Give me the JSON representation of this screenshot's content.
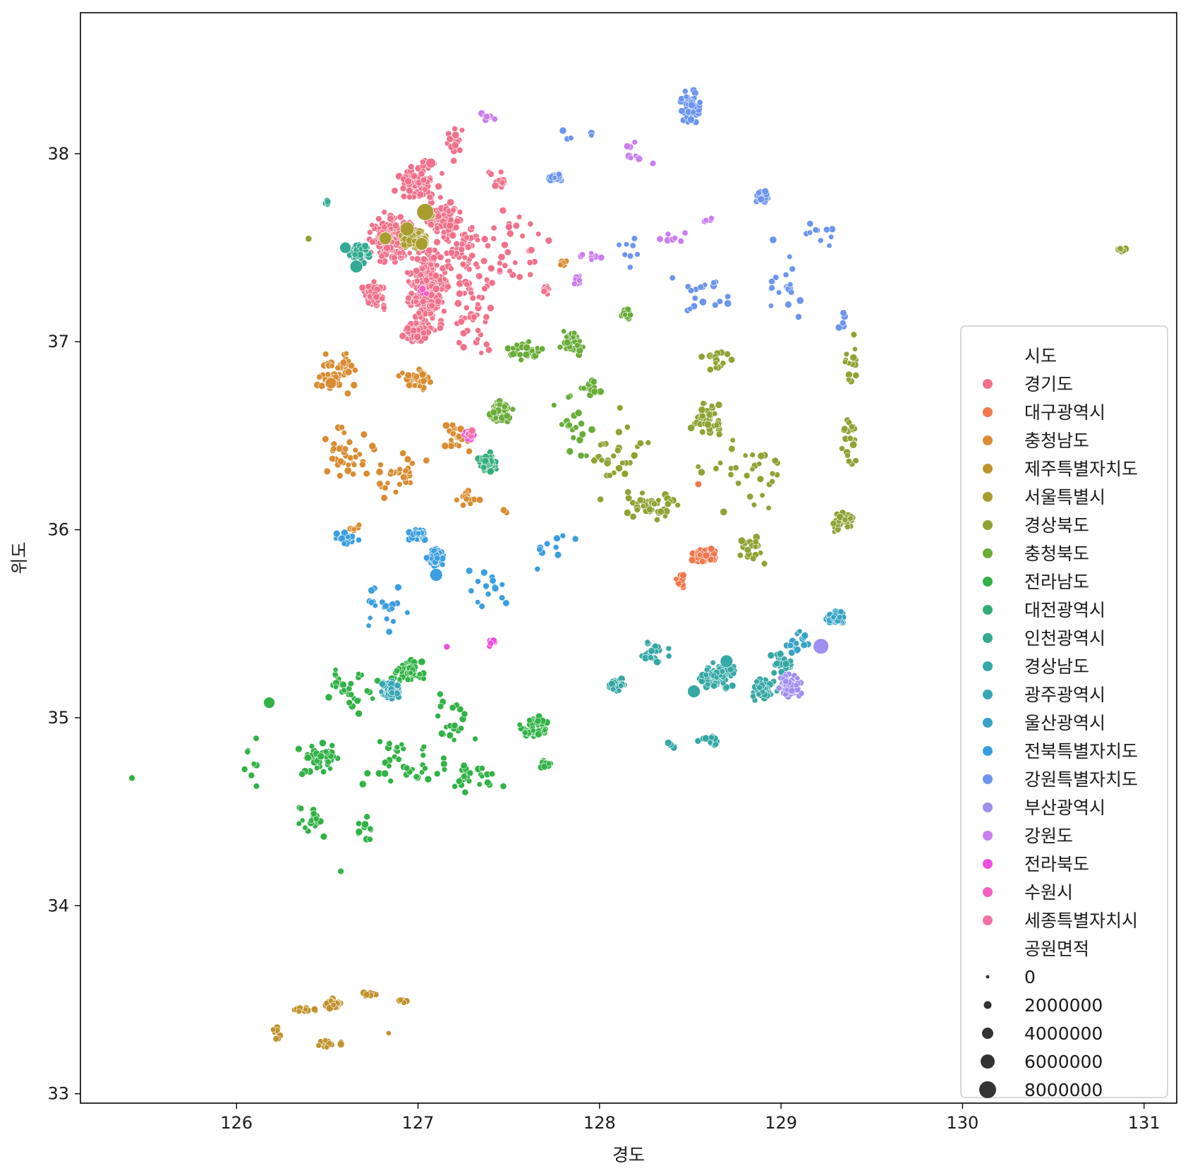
{
  "chart_data": {
    "type": "scatter",
    "xlabel": "경도",
    "ylabel": "위도",
    "xlim": [
      125.14,
      131.18
    ],
    "ylim": [
      32.95,
      38.75
    ],
    "xticks": [
      "126",
      "127",
      "128",
      "129",
      "130",
      "131"
    ],
    "yticks": [
      "33",
      "34",
      "35",
      "36",
      "37",
      "38"
    ],
    "grid": false,
    "legend_position": "right",
    "hue_title": "시도",
    "size_title": "공원면적",
    "size_levels": [
      "0",
      "2000000",
      "4000000",
      "6000000",
      "8000000"
    ],
    "series": [
      {
        "name": "경기도",
        "color": "#f0728a"
      },
      {
        "name": "대구광역시",
        "color": "#f0774e"
      },
      {
        "name": "충청남도",
        "color": "#d98c31"
      },
      {
        "name": "제주특별자치도",
        "color": "#c0922c"
      },
      {
        "name": "서울특별시",
        "color": "#a99d2f"
      },
      {
        "name": "경상북도",
        "color": "#8ea333"
      },
      {
        "name": "충청북도",
        "color": "#69ac38"
      },
      {
        "name": "전라남도",
        "color": "#32b246"
      },
      {
        "name": "대전광역시",
        "color": "#35ad7b"
      },
      {
        "name": "인천광역시",
        "color": "#33aa93"
      },
      {
        "name": "경상남도",
        "color": "#35a8a5"
      },
      {
        "name": "광주광역시",
        "color": "#37a6b5"
      },
      {
        "name": "울산광역시",
        "color": "#38a3c6"
      },
      {
        "name": "전북특별자치도",
        "color": "#3b9ee0"
      },
      {
        "name": "강원특별자치도",
        "color": "#6c95ee"
      },
      {
        "name": "부산광역시",
        "color": "#a08ef0"
      },
      {
        "name": "강원도",
        "color": "#ca7df0"
      },
      {
        "name": "전라북도",
        "color": "#ee4fe0"
      },
      {
        "name": "수원시",
        "color": "#f45fc0"
      },
      {
        "name": "세종특별자치시",
        "color": "#f470a6"
      }
    ],
    "clusters": [
      {
        "series": 0,
        "points": [
          [
            126.85,
            37.55,
            0.18,
            0.18,
            140
          ],
          [
            127.05,
            37.3,
            0.13,
            0.28,
            260
          ],
          [
            127.15,
            37.65,
            0.14,
            0.12,
            90
          ],
          [
            127.0,
            37.85,
            0.18,
            0.15,
            70
          ],
          [
            127.0,
            37.05,
            0.11,
            0.07,
            110
          ],
          [
            126.75,
            37.25,
            0.1,
            0.12,
            60
          ],
          [
            127.25,
            37.45,
            0.22,
            0.35,
            70
          ],
          [
            127.3,
            37.15,
            0.2,
            0.25,
            40
          ],
          [
            127.55,
            37.5,
            0.25,
            0.3,
            30
          ],
          [
            127.7,
            37.28,
            0.05,
            0.05,
            12
          ],
          [
            127.2,
            38.05,
            0.1,
            0.15,
            18
          ],
          [
            127.45,
            37.85,
            0.1,
            0.1,
            12
          ]
        ],
        "bigs": [
          [
            127.07,
            37.95,
            4
          ]
        ]
      },
      {
        "series": 1,
        "points": [
          [
            128.58,
            35.86,
            0.1,
            0.05,
            90
          ],
          [
            128.45,
            35.72,
            0.04,
            0.08,
            14
          ],
          [
            128.55,
            36.24,
            0.01,
            0.01,
            1
          ]
        ],
        "bigs": []
      },
      {
        "series": 2,
        "points": [
          [
            126.55,
            36.85,
            0.2,
            0.18,
            50
          ],
          [
            127.0,
            36.8,
            0.15,
            0.08,
            30
          ],
          [
            126.6,
            36.4,
            0.2,
            0.2,
            35
          ],
          [
            126.9,
            36.3,
            0.2,
            0.18,
            30
          ],
          [
            127.2,
            36.5,
            0.1,
            0.15,
            20
          ],
          [
            126.65,
            36.0,
            0.06,
            0.07,
            10
          ],
          [
            127.3,
            36.15,
            0.15,
            0.1,
            14
          ],
          [
            127.48,
            36.1,
            0.03,
            0.03,
            3
          ],
          [
            127.8,
            37.42,
            0.04,
            0.02,
            6
          ]
        ],
        "bigs": [
          [
            126.52,
            36.78,
            5
          ]
        ]
      },
      {
        "series": 3,
        "points": [
          [
            126.53,
            33.48,
            0.07,
            0.04,
            30
          ],
          [
            126.38,
            33.45,
            0.12,
            0.02,
            12
          ],
          [
            126.72,
            33.53,
            0.1,
            0.02,
            10
          ],
          [
            126.92,
            33.5,
            0.05,
            0.03,
            5
          ],
          [
            126.22,
            33.32,
            0.05,
            0.06,
            8
          ],
          [
            126.52,
            33.26,
            0.12,
            0.03,
            16
          ],
          [
            126.84,
            33.32,
            0.01,
            0.01,
            1
          ]
        ],
        "bigs": []
      },
      {
        "series": 4,
        "points": [
          [
            126.98,
            37.54,
            0.09,
            0.06,
            240
          ],
          [
            127.05,
            37.68,
            0.04,
            0.03,
            30
          ]
        ],
        "bigs": [
          [
            127.04,
            37.69,
            9
          ],
          [
            126.94,
            37.6,
            7
          ],
          [
            126.82,
            37.55,
            6
          ],
          [
            127.02,
            37.52,
            6
          ]
        ]
      },
      {
        "series": 5,
        "points": [
          [
            128.6,
            36.6,
            0.12,
            0.15,
            40
          ],
          [
            128.3,
            36.12,
            0.2,
            0.1,
            40
          ],
          [
            129.35,
            36.05,
            0.1,
            0.1,
            30
          ],
          [
            128.85,
            35.88,
            0.15,
            0.12,
            20
          ],
          [
            129.38,
            36.5,
            0.1,
            0.25,
            20
          ],
          [
            128.1,
            36.4,
            0.3,
            0.3,
            30
          ],
          [
            128.8,
            36.3,
            0.4,
            0.3,
            30
          ],
          [
            129.4,
            36.9,
            0.1,
            0.25,
            15
          ],
          [
            128.65,
            36.9,
            0.2,
            0.1,
            15
          ],
          [
            130.87,
            37.49,
            0.05,
            0.02,
            8
          ],
          [
            126.4,
            37.55,
            0.01,
            0.01,
            1
          ]
        ],
        "bigs": []
      },
      {
        "series": 6,
        "points": [
          [
            127.45,
            36.63,
            0.08,
            0.08,
            80
          ],
          [
            127.85,
            37.0,
            0.12,
            0.1,
            30
          ],
          [
            127.6,
            36.95,
            0.15,
            0.08,
            25
          ],
          [
            128.15,
            37.15,
            0.05,
            0.04,
            15
          ],
          [
            127.85,
            36.6,
            0.15,
            0.3,
            20
          ],
          [
            127.95,
            36.75,
            0.08,
            0.08,
            15
          ]
        ],
        "bigs": []
      },
      {
        "series": 7,
        "points": [
          [
            126.95,
            35.25,
            0.12,
            0.1,
            60
          ],
          [
            127.65,
            34.95,
            0.12,
            0.08,
            50
          ],
          [
            127.7,
            34.75,
            0.05,
            0.03,
            20
          ],
          [
            126.45,
            34.8,
            0.15,
            0.15,
            40
          ],
          [
            126.6,
            35.15,
            0.2,
            0.2,
            30
          ],
          [
            126.9,
            34.75,
            0.3,
            0.2,
            35
          ],
          [
            127.3,
            34.7,
            0.2,
            0.15,
            25
          ],
          [
            126.4,
            34.45,
            0.15,
            0.15,
            20
          ],
          [
            126.1,
            34.7,
            0.1,
            0.25,
            10
          ],
          [
            126.7,
            34.4,
            0.1,
            0.1,
            10
          ],
          [
            127.2,
            35.0,
            0.15,
            0.2,
            20
          ],
          [
            125.42,
            34.68,
            0.01,
            0.01,
            1
          ],
          [
            126.58,
            34.18,
            0.01,
            0.01,
            1
          ]
        ],
        "bigs": [
          [
            126.18,
            35.08,
            5
          ]
        ]
      },
      {
        "series": 8,
        "points": [
          [
            127.38,
            36.36,
            0.07,
            0.07,
            80
          ]
        ],
        "bigs": []
      },
      {
        "series": 9,
        "points": [
          [
            126.68,
            37.48,
            0.07,
            0.08,
            60
          ],
          [
            126.5,
            37.74,
            0.02,
            0.02,
            6
          ]
        ],
        "bigs": [
          [
            126.66,
            37.4,
            6
          ],
          [
            126.6,
            37.5,
            5
          ]
        ]
      },
      {
        "series": 10,
        "points": [
          [
            128.65,
            35.22,
            0.15,
            0.1,
            80
          ],
          [
            128.1,
            35.18,
            0.08,
            0.06,
            30
          ],
          [
            128.6,
            34.88,
            0.1,
            0.04,
            15
          ],
          [
            128.4,
            34.85,
            0.04,
            0.03,
            8
          ],
          [
            128.9,
            35.15,
            0.1,
            0.08,
            40
          ],
          [
            128.3,
            35.35,
            0.1,
            0.1,
            20
          ],
          [
            129.0,
            35.3,
            0.1,
            0.1,
            20
          ]
        ],
        "bigs": [
          [
            128.52,
            35.14,
            6
          ],
          [
            128.7,
            35.3,
            6
          ]
        ]
      },
      {
        "series": 11,
        "points": [
          [
            126.85,
            35.15,
            0.08,
            0.07,
            100
          ]
        ],
        "bigs": []
      },
      {
        "series": 12,
        "points": [
          [
            129.3,
            35.53,
            0.07,
            0.06,
            60
          ],
          [
            129.1,
            35.4,
            0.1,
            0.1,
            20
          ]
        ],
        "bigs": []
      },
      {
        "series": 13,
        "points": [
          [
            127.1,
            35.85,
            0.06,
            0.06,
            70
          ],
          [
            127.0,
            35.97,
            0.07,
            0.05,
            30
          ],
          [
            126.6,
            35.95,
            0.1,
            0.05,
            20
          ],
          [
            126.8,
            35.6,
            0.2,
            0.2,
            20
          ],
          [
            127.4,
            35.7,
            0.2,
            0.2,
            15
          ],
          [
            127.7,
            35.9,
            0.3,
            0.2,
            10
          ]
        ],
        "bigs": [
          [
            127.1,
            35.76,
            6
          ]
        ]
      },
      {
        "series": 14,
        "points": [
          [
            128.5,
            38.25,
            0.08,
            0.15,
            40
          ],
          [
            128.9,
            37.78,
            0.06,
            0.06,
            30
          ],
          [
            127.75,
            37.87,
            0.06,
            0.03,
            20
          ],
          [
            129.0,
            37.3,
            0.2,
            0.35,
            20
          ],
          [
            128.6,
            37.25,
            0.25,
            0.15,
            20
          ],
          [
            127.9,
            38.1,
            0.2,
            0.05,
            5
          ],
          [
            128.2,
            37.5,
            0.15,
            0.2,
            8
          ],
          [
            129.2,
            37.55,
            0.15,
            0.15,
            10
          ],
          [
            129.35,
            37.1,
            0.05,
            0.15,
            5
          ]
        ],
        "bigs": []
      },
      {
        "series": 15,
        "points": [
          [
            129.05,
            35.17,
            0.1,
            0.08,
            90
          ]
        ],
        "bigs": [
          [
            129.22,
            35.38,
            8
          ]
        ]
      },
      {
        "series": 16,
        "points": [
          [
            127.4,
            38.2,
            0.1,
            0.03,
            10
          ],
          [
            128.2,
            38.0,
            0.15,
            0.1,
            8
          ],
          [
            127.95,
            37.45,
            0.1,
            0.05,
            8
          ],
          [
            128.4,
            37.55,
            0.15,
            0.05,
            8
          ],
          [
            127.88,
            37.33,
            0.05,
            0.05,
            10
          ],
          [
            128.6,
            37.65,
            0.05,
            0.02,
            4
          ]
        ],
        "bigs": []
      },
      {
        "series": 17,
        "points": [
          [
            127.28,
            36.5,
            0.04,
            0.03,
            20
          ],
          [
            127.4,
            35.4,
            0.05,
            0.03,
            10
          ],
          [
            127.16,
            35.38,
            0.01,
            0.01,
            1
          ]
        ],
        "bigs": []
      },
      {
        "series": 18,
        "points": [
          [
            127.03,
            37.28,
            0.03,
            0.03,
            8
          ]
        ],
        "bigs": []
      },
      {
        "series": 19,
        "points": [
          [
            127.28,
            36.52,
            0.03,
            0.03,
            6
          ]
        ],
        "bigs": []
      }
    ]
  }
}
